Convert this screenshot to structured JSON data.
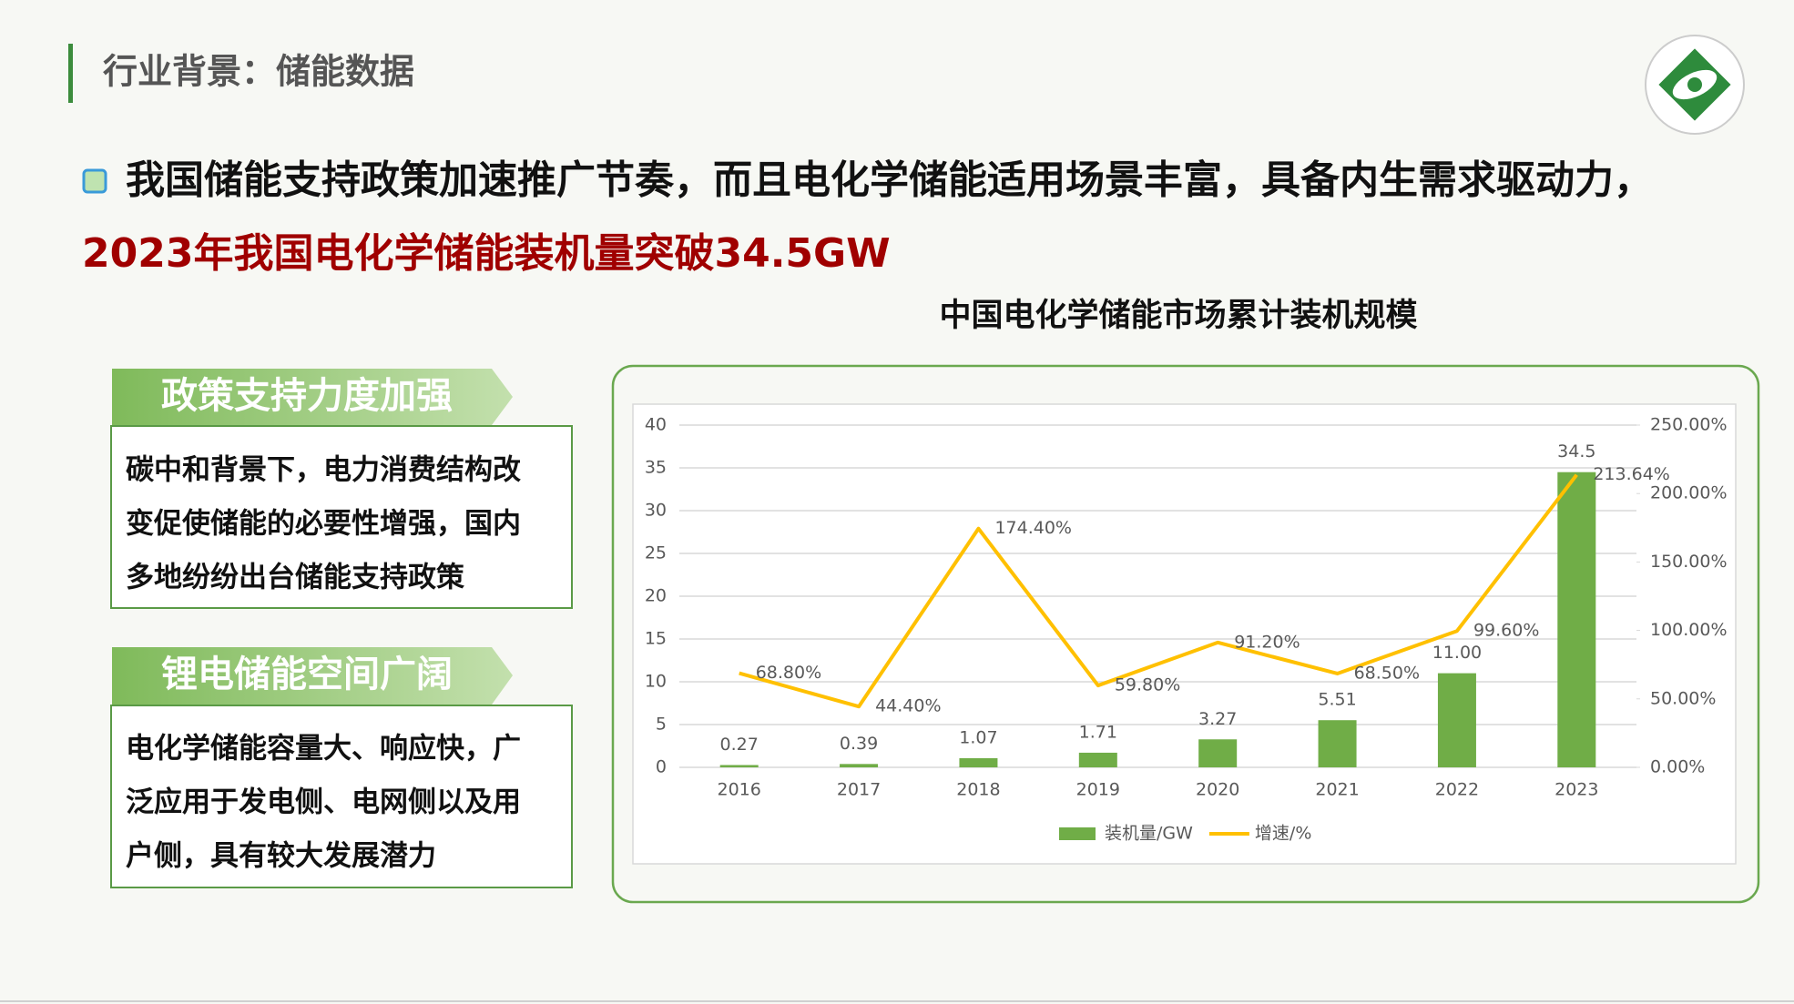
{
  "header": {
    "title": "行业背景：储能数据"
  },
  "headline": {
    "line1": "我国储能支持政策加速推广节奏，而且电化学储能适用场景丰富，具备内生需求驱动力，",
    "line2": "2023年我国电化学储能装机量突破34.5GW"
  },
  "panels": [
    {
      "title": "政策支持力度加强",
      "lines": [
        "碳中和背景下，电力消费结构改",
        "变促使储能的必要性增强，国内",
        "多地纷纷出台储能支持政策"
      ]
    },
    {
      "title": "锂电储能空间广阔",
      "lines": [
        "电化学储能容量大、响应快，广",
        "泛应用于发电侧、电网侧以及用",
        "户侧，具有较大发展潜力"
      ]
    }
  ],
  "chart_data": {
    "type": "bar",
    "title": "中国电化学储能市场累计装机规模",
    "categories": [
      "2016",
      "2017",
      "2018",
      "2019",
      "2020",
      "2021",
      "2022",
      "2023"
    ],
    "series": [
      {
        "name": "装机量/GW",
        "type": "bar",
        "color": "#70ad47",
        "values": [
          0.27,
          0.39,
          1.07,
          1.71,
          3.27,
          5.51,
          11.0,
          34.5
        ],
        "value_labels": [
          "0.27",
          "0.39",
          "1.07",
          "1.71",
          "3.27",
          "5.51",
          "11.00",
          "34.5"
        ]
      },
      {
        "name": "增速/%",
        "type": "line",
        "axis": "y2",
        "color": "#ffc000",
        "values": [
          68.8,
          44.4,
          174.4,
          59.8,
          91.2,
          68.5,
          99.6,
          213.64
        ],
        "value_labels": [
          "68.80%",
          "44.40%",
          "174.40%",
          "59.80%",
          "91.20%",
          "68.50%",
          "99.60%",
          "213.64%"
        ]
      }
    ],
    "ylim": [
      0,
      40
    ],
    "yticks": [
      0,
      5,
      10,
      15,
      20,
      25,
      30,
      35,
      40
    ],
    "y2lim": [
      0,
      250
    ],
    "y2ticks": [
      {
        "value": 0,
        "label": "0.00%"
      },
      {
        "value": 50,
        "label": "50.00%"
      },
      {
        "value": 100,
        "label": "100.00%"
      },
      {
        "value": 150,
        "label": "150.00%"
      },
      {
        "value": 200,
        "label": "200.00%"
      },
      {
        "value": 250,
        "label": "250.00%"
      }
    ],
    "grid": true,
    "legend": "bottom"
  }
}
